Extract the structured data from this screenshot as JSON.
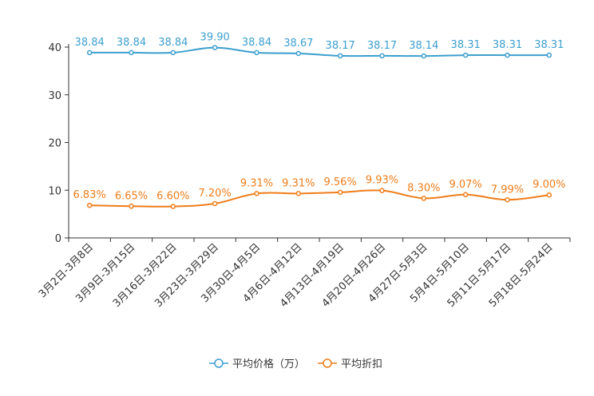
{
  "chart_data": {
    "type": "line",
    "title": "",
    "xlabel": "",
    "ylabel": "",
    "ylim": [
      0,
      40
    ],
    "yticks": [
      0,
      10,
      20,
      30,
      40
    ],
    "legend_position": "bottom-center",
    "categories": [
      "3月2日-3月8日",
      "3月9日-3月15日",
      "3月16日-3月22日",
      "3月23日-3月29日",
      "3月30日-4月5日",
      "4月6日-4月12日",
      "4月13日-4月19日",
      "4月20日-4月26日",
      "4月27日-5月3日",
      "5月4日-5月10日",
      "5月11日-5月17日",
      "5月18日-5月24日"
    ],
    "series": [
      {
        "name": "平均价格（万）",
        "color": "#3c9fcf",
        "values": [
          38.84,
          38.84,
          38.84,
          39.9,
          38.84,
          38.67,
          38.17,
          38.17,
          38.14,
          38.31,
          38.31,
          38.31
        ],
        "labels": [
          "38.84",
          "38.84",
          "38.84",
          "39.90",
          "38.84",
          "38.67",
          "38.17",
          "38.17",
          "38.14",
          "38.31",
          "38.31",
          "38.31"
        ]
      },
      {
        "name": "平均折扣",
        "color": "#ef7d1a",
        "values": [
          6.83,
          6.65,
          6.6,
          7.2,
          9.31,
          9.31,
          9.56,
          9.93,
          8.3,
          9.07,
          7.99,
          9.0
        ],
        "labels": [
          "6.83%",
          "6.65%",
          "6.60%",
          "7.20%",
          "9.31%",
          "9.31%",
          "9.56%",
          "9.93%",
          "8.30%",
          "9.07%",
          "7.99%",
          "9.00%"
        ]
      }
    ]
  }
}
